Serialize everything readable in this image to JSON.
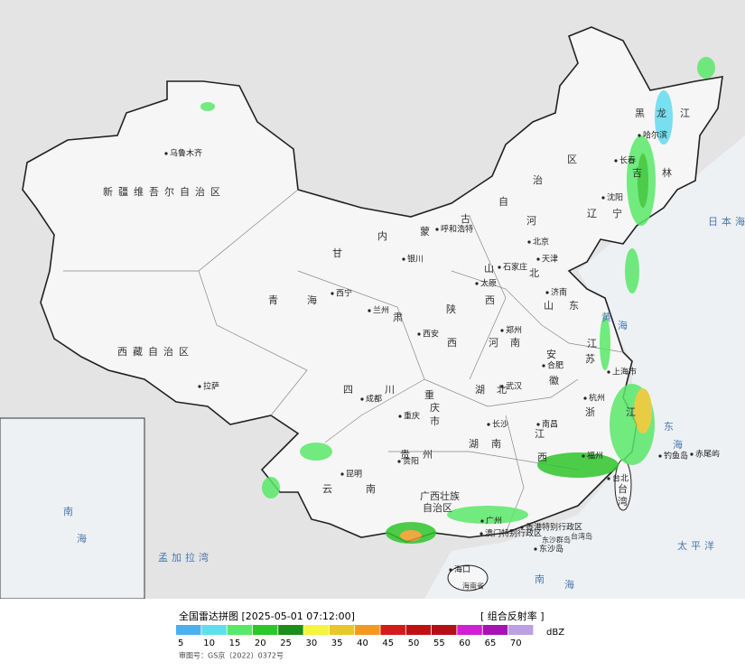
{
  "map": {
    "labels": [
      "乌鲁木齐",
      "新疆维吾尔自治区",
      "西藏自治区",
      "拉萨",
      "青",
      "海",
      "西宁",
      "兰州",
      "甘",
      "肃",
      "内",
      "蒙",
      "古",
      "自",
      "治",
      "区",
      "呼和浩特",
      "银川",
      "北京",
      "天津",
      "石家庄",
      "太原",
      "河",
      "北",
      "山",
      "西",
      "济南",
      "山",
      "东",
      "郑州",
      "河",
      "南",
      "西安",
      "陕",
      "西",
      "合肥",
      "安",
      "徽",
      "江",
      "苏",
      "上海市",
      "杭州",
      "浙",
      "江",
      "武汉",
      "湖",
      "北",
      "成都",
      "四",
      "川",
      "重庆",
      "重",
      "庆",
      "市",
      "长沙",
      "南昌",
      "江",
      "西",
      "湖",
      "南",
      "贵阳",
      "贵",
      "州",
      "昆明",
      "云",
      "南",
      "福州",
      "台北",
      "台",
      "湾",
      "广西壮族",
      "自治区",
      "广州",
      "香港特别行政区",
      "澳门特别行政区",
      "东沙群岛",
      "东沙岛",
      "台湾岛",
      "海口",
      "海南省",
      "钓鱼岛",
      "赤尾屿",
      "太平洋",
      "日本海",
      "黄",
      "海",
      "东",
      "海",
      "南",
      "海",
      "孟加拉湾",
      "黑",
      "龙",
      "江",
      "哈尔滨",
      "吉",
      "林",
      "长春",
      "沈阳",
      "辽",
      "宁",
      "南",
      "海"
    ]
  },
  "legend": {
    "title": "全国雷达拼图 [2025-05-01 07:12:00]",
    "product": "[ 组合反射率 ]",
    "unit": "dBZ",
    "approval": "审图号：GS京（2022）0372号",
    "stops": [
      {
        "value": 5,
        "color": "#4db0ec"
      },
      {
        "value": 10,
        "color": "#62dcef"
      },
      {
        "value": 15,
        "color": "#5ae86a"
      },
      {
        "value": 20,
        "color": "#2fc52c"
      },
      {
        "value": 25,
        "color": "#1e8e1a"
      },
      {
        "value": 30,
        "color": "#f5f53a"
      },
      {
        "value": 35,
        "color": "#e8c726"
      },
      {
        "value": 40,
        "color": "#f09a25"
      },
      {
        "value": 45,
        "color": "#d61a1a"
      },
      {
        "value": 50,
        "color": "#c40f10"
      },
      {
        "value": 55,
        "color": "#b80d18"
      },
      {
        "value": 60,
        "color": "#d21fd0"
      },
      {
        "value": 65,
        "color": "#a614b0"
      },
      {
        "value": 70,
        "color": "#bba0e6"
      }
    ]
  }
}
